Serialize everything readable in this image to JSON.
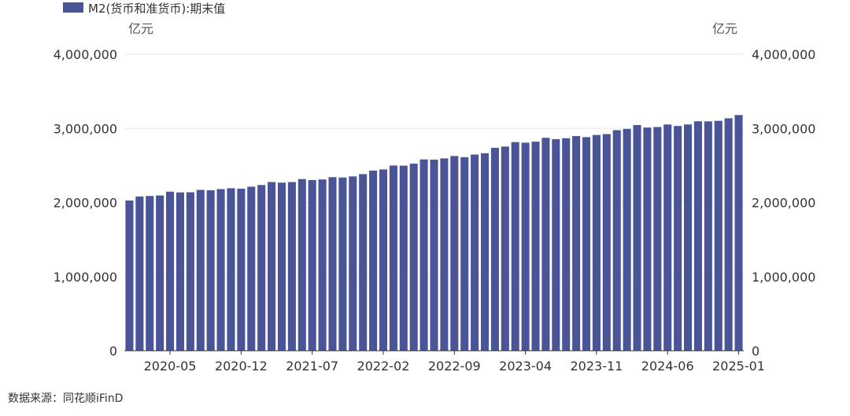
{
  "legend": {
    "label": "M2(货币和准货币):期末值",
    "color": "#4a5597"
  },
  "axis": {
    "left_unit": "亿元",
    "right_unit": "亿元"
  },
  "source": "数据来源：同花顺iFinD",
  "chart_data": {
    "type": "bar",
    "title": "",
    "xlabel": "",
    "ylabel": "亿元",
    "ylim": [
      0,
      4000000
    ],
    "yticks": [
      0,
      1000000,
      2000000,
      3000000,
      4000000
    ],
    "ytick_labels": [
      "0",
      "1,000,000",
      "2,000,000",
      "3,000,000",
      "4,000,000"
    ],
    "xtick_labels": [
      "2020-05",
      "2020-12",
      "2021-07",
      "2022-02",
      "2022-09",
      "2023-04",
      "2023-11",
      "2024-06",
      "2025-01"
    ],
    "grid": "horizontal",
    "legend_position": "top-left",
    "series": [
      {
        "name": "M2(货币和准货币):期末值",
        "color": "#4a5597",
        "categories": [
          "2020-01",
          "2020-02",
          "2020-03",
          "2020-04",
          "2020-05",
          "2020-06",
          "2020-07",
          "2020-08",
          "2020-09",
          "2020-10",
          "2020-11",
          "2020-12",
          "2021-01",
          "2021-02",
          "2021-03",
          "2021-04",
          "2021-05",
          "2021-06",
          "2021-07",
          "2021-08",
          "2021-09",
          "2021-10",
          "2021-11",
          "2021-12",
          "2022-01",
          "2022-02",
          "2022-03",
          "2022-04",
          "2022-05",
          "2022-06",
          "2022-07",
          "2022-08",
          "2022-09",
          "2022-10",
          "2022-11",
          "2022-12",
          "2023-01",
          "2023-02",
          "2023-03",
          "2023-04",
          "2023-05",
          "2023-06",
          "2023-07",
          "2023-08",
          "2023-09",
          "2023-10",
          "2023-11",
          "2023-12",
          "2024-01",
          "2024-02",
          "2024-03",
          "2024-04",
          "2024-05",
          "2024-06",
          "2024-07",
          "2024-08",
          "2024-09",
          "2024-10",
          "2024-11",
          "2024-12",
          "2025-01"
        ],
        "values": [
          2027000,
          2081000,
          2088000,
          2095000,
          2146000,
          2136000,
          2138000,
          2170000,
          2165000,
          2181000,
          2192000,
          2187000,
          2213000,
          2236000,
          2276000,
          2268000,
          2276000,
          2316000,
          2303000,
          2311000,
          2342000,
          2337000,
          2352000,
          2383000,
          2431000,
          2446000,
          2499000,
          2497000,
          2524000,
          2581000,
          2578000,
          2595000,
          2627000,
          2612000,
          2647000,
          2665000,
          2738000,
          2755000,
          2815000,
          2807000,
          2821000,
          2873000,
          2855000,
          2867000,
          2896000,
          2882000,
          2911000,
          2923000,
          2976000,
          2993000,
          3045000,
          3011000,
          3018000,
          3052000,
          3033000,
          3053000,
          3096000,
          3095000,
          3102000,
          3136000,
          3180000
        ]
      }
    ]
  }
}
